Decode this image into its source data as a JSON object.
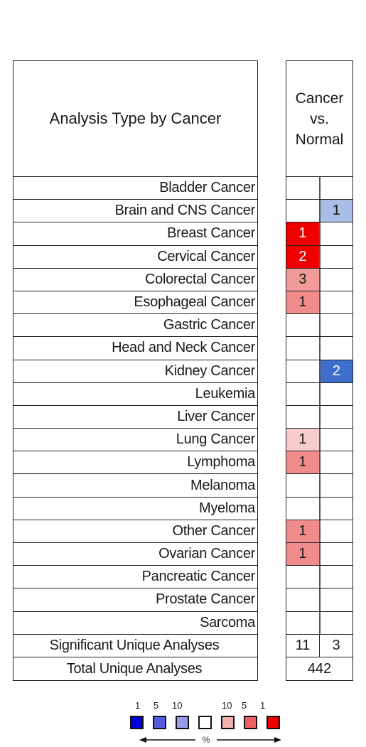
{
  "chart_data": {
    "type": "table",
    "row_header_title": "Analysis Type by Cancer",
    "column_header": [
      "Cancer",
      "vs.",
      "Normal"
    ],
    "rows": [
      {
        "label": "Bladder Cancer",
        "up": "",
        "down": ""
      },
      {
        "label": "Brain and CNS Cancer",
        "up": "",
        "down": "1"
      },
      {
        "label": "Breast Cancer",
        "up": "1",
        "down": ""
      },
      {
        "label": "Cervical Cancer",
        "up": "2",
        "down": ""
      },
      {
        "label": "Colorectal Cancer",
        "up": "3",
        "down": ""
      },
      {
        "label": "Esophageal Cancer",
        "up": "1",
        "down": ""
      },
      {
        "label": "Gastric Cancer",
        "up": "",
        "down": ""
      },
      {
        "label": "Head and Neck Cancer",
        "up": "",
        "down": ""
      },
      {
        "label": "Kidney Cancer",
        "up": "",
        "down": "2"
      },
      {
        "label": "Leukemia",
        "up": "",
        "down": ""
      },
      {
        "label": "Liver Cancer",
        "up": "",
        "down": ""
      },
      {
        "label": "Lung Cancer",
        "up": "1",
        "down": ""
      },
      {
        "label": "Lymphoma",
        "up": "1",
        "down": ""
      },
      {
        "label": "Melanoma",
        "up": "",
        "down": ""
      },
      {
        "label": "Myeloma",
        "up": "",
        "down": ""
      },
      {
        "label": "Other Cancer",
        "up": "1",
        "down": ""
      },
      {
        "label": "Ovarian Cancer",
        "up": "1",
        "down": ""
      },
      {
        "label": "Pancreatic Cancer",
        "up": "",
        "down": ""
      },
      {
        "label": "Prostate Cancer",
        "up": "",
        "down": ""
      },
      {
        "label": "Sarcoma",
        "up": "",
        "down": ""
      }
    ],
    "cell_colors": {
      "Brain and CNS Cancer.down": "#a9bde6",
      "Breast Cancer.up": "#ee0000",
      "Cervical Cancer.up": "#ee0000",
      "Colorectal Cancer.up": "#f09a9a",
      "Esophageal Cancer.up": "#f08c8c",
      "Kidney Cancer.down": "#3f6fcc",
      "Lung Cancer.up": "#f7cccc",
      "Lymphoma.up": "#f08c8c",
      "Other Cancer.up": "#f08c8c",
      "Ovarian Cancer.up": "#f08c8c"
    },
    "totals": [
      {
        "label": "Significant Unique Analyses",
        "up": "11",
        "down": "3"
      },
      {
        "label": "Total Unique Analyses",
        "merged": "442"
      }
    ]
  },
  "legend": {
    "labels": [
      "1",
      "5",
      "10",
      "10",
      "5",
      "1"
    ],
    "axis_label": "%",
    "boxes": [
      "#0000dd",
      "#5a5add",
      "#9a9ae8",
      "#ffffff",
      "#f2b0b0",
      "#ee6060",
      "#ee0000"
    ]
  }
}
